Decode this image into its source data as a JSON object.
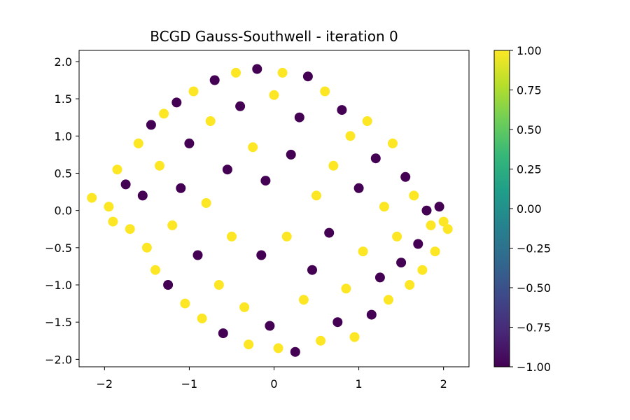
{
  "chart_data": {
    "type": "scatter",
    "title": "BCGD Gauss-Southwell - iteration 0",
    "xlabel": "",
    "ylabel": "",
    "xlim": [
      -2.3,
      2.3
    ],
    "ylim": [
      -2.1,
      2.15
    ],
    "xticks": [
      -2,
      -1,
      0,
      1,
      2
    ],
    "xtick_labels": [
      "−2",
      "−1",
      "0",
      "1",
      "2"
    ],
    "yticks": [
      2.0,
      1.5,
      1.0,
      0.5,
      0.0,
      -0.5,
      -1.0,
      -1.5,
      -2.0
    ],
    "ytick_labels": [
      "2.0",
      "1.5",
      "1.0",
      "0.5",
      "0.0",
      "−0.5",
      "−1.0",
      "−1.5",
      "−2.0"
    ],
    "grid": false,
    "colormap": "viridis",
    "colormap_stops": [
      "#440154",
      "#482878",
      "#3e4989",
      "#31688e",
      "#26828e",
      "#1f9e89",
      "#35b779",
      "#6ece58",
      "#b5de2b",
      "#fde725"
    ],
    "colorbar": {
      "range": [
        -1.0,
        1.0
      ],
      "ticks": [
        1.0,
        0.75,
        0.5,
        0.25,
        0.0,
        -0.25,
        -0.5,
        -0.75,
        -1.0
      ],
      "tick_labels": [
        "1.00",
        "0.75",
        "0.50",
        "0.25",
        "0.00",
        "−0.25",
        "−0.50",
        "−0.75",
        "−1.00"
      ]
    },
    "class_colors": {
      "-1": "#440154",
      "1": "#fde725"
    },
    "series": [
      {
        "spiral": "two interleaved spirals, approx. radius 0.5 to 2.0 in data units",
        "points": [
          [
            -2.15,
            0.17,
            1
          ],
          [
            -1.95,
            0.05,
            1
          ],
          [
            -1.9,
            -0.15,
            1
          ],
          [
            -1.85,
            0.55,
            1
          ],
          [
            -1.75,
            0.35,
            -1
          ],
          [
            -1.7,
            -0.25,
            1
          ],
          [
            -1.6,
            0.9,
            1
          ],
          [
            -1.55,
            0.2,
            -1
          ],
          [
            -1.5,
            -0.5,
            1
          ],
          [
            -1.45,
            1.15,
            -1
          ],
          [
            -1.4,
            -0.8,
            1
          ],
          [
            -1.35,
            0.6,
            1
          ],
          [
            -1.3,
            1.3,
            1
          ],
          [
            -1.25,
            -1.0,
            -1
          ],
          [
            -1.2,
            -0.2,
            1
          ],
          [
            -1.15,
            1.45,
            -1
          ],
          [
            -1.1,
            0.3,
            -1
          ],
          [
            -1.05,
            -1.25,
            1
          ],
          [
            -1.0,
            0.9,
            -1
          ],
          [
            -0.95,
            1.6,
            1
          ],
          [
            -0.9,
            -0.6,
            -1
          ],
          [
            -0.85,
            -1.45,
            1
          ],
          [
            -0.8,
            0.1,
            1
          ],
          [
            -0.75,
            1.2,
            1
          ],
          [
            -0.7,
            1.75,
            -1
          ],
          [
            -0.65,
            -1.0,
            1
          ],
          [
            -0.6,
            -1.65,
            -1
          ],
          [
            -0.55,
            0.55,
            -1
          ],
          [
            -0.5,
            -0.35,
            1
          ],
          [
            -0.45,
            1.85,
            1
          ],
          [
            -0.4,
            1.4,
            -1
          ],
          [
            -0.35,
            -1.3,
            1
          ],
          [
            -0.3,
            -1.8,
            1
          ],
          [
            -0.25,
            0.85,
            1
          ],
          [
            -0.2,
            1.9,
            -1
          ],
          [
            -0.15,
            -0.6,
            -1
          ],
          [
            -0.1,
            0.4,
            -1
          ],
          [
            -0.05,
            -1.55,
            -1
          ],
          [
            0.0,
            1.55,
            1
          ],
          [
            0.05,
            -1.85,
            1
          ],
          [
            0.1,
            1.85,
            1
          ],
          [
            0.15,
            -0.35,
            1
          ],
          [
            0.2,
            0.75,
            -1
          ],
          [
            0.25,
            -1.9,
            -1
          ],
          [
            0.3,
            1.25,
            -1
          ],
          [
            0.35,
            -1.2,
            1
          ],
          [
            0.4,
            1.8,
            -1
          ],
          [
            0.45,
            -0.8,
            -1
          ],
          [
            0.5,
            0.2,
            1
          ],
          [
            0.55,
            -1.75,
            1
          ],
          [
            0.6,
            1.6,
            1
          ],
          [
            0.65,
            -0.3,
            -1
          ],
          [
            0.7,
            0.6,
            1
          ],
          [
            0.75,
            -1.5,
            -1
          ],
          [
            0.8,
            1.35,
            -1
          ],
          [
            0.85,
            -1.05,
            1
          ],
          [
            0.9,
            1.0,
            1
          ],
          [
            0.95,
            -1.7,
            1
          ],
          [
            1.0,
            0.3,
            -1
          ],
          [
            1.05,
            -0.55,
            1
          ],
          [
            1.1,
            1.2,
            1
          ],
          [
            1.15,
            -1.4,
            -1
          ],
          [
            1.2,
            0.7,
            -1
          ],
          [
            1.25,
            -0.9,
            -1
          ],
          [
            1.3,
            0.05,
            1
          ],
          [
            1.35,
            -1.2,
            1
          ],
          [
            1.4,
            0.9,
            1
          ],
          [
            1.45,
            -0.35,
            1
          ],
          [
            1.5,
            -0.7,
            -1
          ],
          [
            1.55,
            0.45,
            -1
          ],
          [
            1.6,
            -1.0,
            1
          ],
          [
            1.65,
            0.2,
            1
          ],
          [
            1.7,
            -0.45,
            -1
          ],
          [
            1.75,
            -0.8,
            1
          ],
          [
            1.8,
            0.0,
            -1
          ],
          [
            1.85,
            -0.2,
            1
          ],
          [
            1.9,
            -0.55,
            1
          ],
          [
            1.95,
            0.05,
            -1
          ],
          [
            2.0,
            -0.15,
            1
          ],
          [
            2.05,
            -0.25,
            1
          ]
        ]
      }
    ]
  }
}
